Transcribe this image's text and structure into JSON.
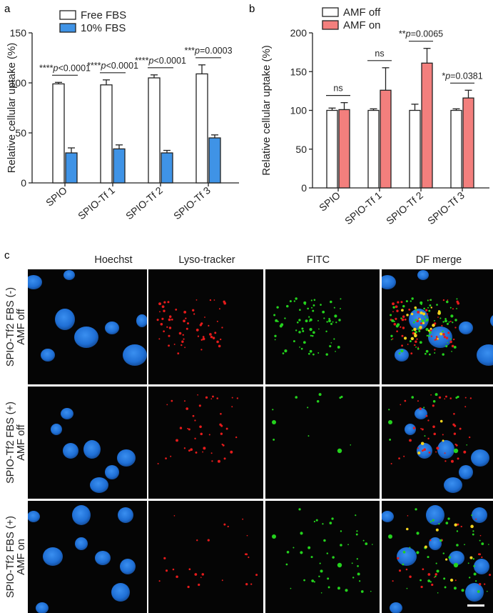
{
  "panel_labels": {
    "a": "a",
    "b": "b",
    "c": "c"
  },
  "colors": {
    "free_fbs": "#ffffff",
    "fbs10": "#3f93e6",
    "amf_off": "#ffffff",
    "amf_on": "#f37f7d",
    "nucleus": "#1f73d8",
    "lyso": "#e51b1b",
    "fitc": "#24d21d",
    "merge_yellow": "#f2d31e",
    "scale_bar": "#ffffff"
  },
  "chart_data": [
    {
      "type": "bar",
      "panel": "a",
      "categories": [
        "SPIO",
        "SPIO-Tf 1",
        "SPIO-Tf 2",
        "SPIO-Tf 3"
      ],
      "ylabel": "Relative cellular uptake (%)",
      "ylim": [
        0,
        150
      ],
      "yticks": [
        0,
        50,
        100,
        150
      ],
      "legend_position": "top-left",
      "series": [
        {
          "name": "Free FBS",
          "values": [
            99,
            98,
            105,
            109
          ],
          "errors": [
            1.5,
            5,
            3,
            9
          ]
        },
        {
          "name": "10% FBS",
          "values": [
            30,
            34,
            30,
            45
          ],
          "errors": [
            5,
            4,
            2.5,
            3
          ]
        }
      ],
      "annotations": [
        {
          "category": 0,
          "stars": "****",
          "text": "p<0.0001"
        },
        {
          "category": 1,
          "stars": "****",
          "text": "p<0.0001"
        },
        {
          "category": 2,
          "stars": "****",
          "text": "p<0.0001"
        },
        {
          "category": 3,
          "stars": "***",
          "text": "p=0.0003"
        }
      ]
    },
    {
      "type": "bar",
      "panel": "b",
      "categories": [
        "SPIO",
        "SPIO-Tf 1",
        "SPIO-Tf 2",
        "SPIO-Tf 3"
      ],
      "ylabel": "Relative cellular uptake (%)",
      "ylim": [
        0,
        200
      ],
      "yticks": [
        0,
        50,
        100,
        150,
        200
      ],
      "legend_position": "top-left",
      "series": [
        {
          "name": "AMF off",
          "values": [
            100,
            100,
            100,
            100
          ],
          "errors": [
            3,
            2,
            8,
            2
          ]
        },
        {
          "name": "AMF on",
          "values": [
            101,
            126,
            161,
            116
          ],
          "errors": [
            9,
            29,
            19,
            10
          ]
        }
      ],
      "annotations": [
        {
          "category": 0,
          "stars": "",
          "text": "ns"
        },
        {
          "category": 1,
          "stars": "",
          "text": "ns"
        },
        {
          "category": 2,
          "stars": "**",
          "text": "p=0.0065"
        },
        {
          "category": 3,
          "stars": "*",
          "text": "p=0.0381"
        }
      ]
    }
  ],
  "microscopy": {
    "column_headers": [
      "Hoechst",
      "Lyso-tracker",
      "FITC",
      "DF merge"
    ],
    "rows": [
      {
        "line1": "SPIO-Tf2 FBS (-)",
        "line2": "AMF off"
      },
      {
        "line1": "SPIO-Tf2 FBS (+)",
        "line2": "AMF off"
      },
      {
        "line1": "SPIO-Tf2 FBS (+)",
        "line2": "AMF on"
      }
    ]
  }
}
